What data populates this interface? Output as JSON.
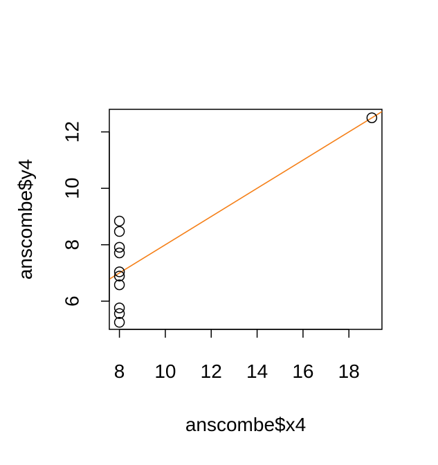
{
  "chart_data": {
    "type": "scatter",
    "title": "",
    "xlabel": "anscombe$x4",
    "ylabel": "anscombe$y4",
    "xlim": [
      7.56,
      19.44
    ],
    "ylim": [
      5.0,
      12.8
    ],
    "xticks": [
      8,
      10,
      12,
      14,
      16,
      18
    ],
    "yticks": [
      6,
      8,
      10,
      12
    ],
    "xtick_labels": [
      "8",
      "10",
      "12",
      "14",
      "16",
      "18"
    ],
    "ytick_labels": [
      "6",
      "8",
      "10",
      "12"
    ],
    "grid": false,
    "series": [
      {
        "marker": "open-circle",
        "color": "#000000",
        "x": [
          8,
          8,
          8,
          8,
          8,
          8,
          8,
          19,
          8,
          8,
          8
        ],
        "y": [
          6.58,
          5.76,
          7.71,
          8.84,
          8.47,
          7.04,
          5.25,
          12.5,
          5.56,
          7.91,
          6.89
        ]
      }
    ],
    "fit_line": {
      "intercept": 3.0017,
      "slope": 0.4999,
      "color": "#F57F17"
    }
  }
}
